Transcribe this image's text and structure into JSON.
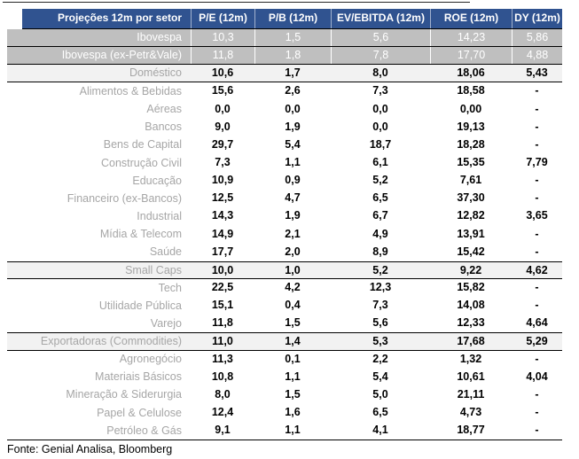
{
  "chart_data": {
    "type": "table",
    "title": "Projeções 12m por setor",
    "columns": [
      "P/E (12m)",
      "P/B (12m)",
      "EV/EBITDA (12m)",
      "ROE (12m)",
      "DY (12m)"
    ],
    "rows": [
      {
        "label": "Ibovespa",
        "style": "dark",
        "values": [
          "10,3",
          "1,5",
          "5,6",
          "14,23",
          "5,86"
        ]
      },
      {
        "label": "Ibovespa (ex-Petr&Vale)",
        "style": "dark",
        "values": [
          "11,8",
          "1,8",
          "7,8",
          "17,70",
          "4,88"
        ]
      },
      {
        "label": "Doméstico",
        "style": "section",
        "values": [
          "10,6",
          "1,7",
          "8,0",
          "18,06",
          "5,43"
        ]
      },
      {
        "label": "Alimentos & Bebidas",
        "style": "normal",
        "values": [
          "15,6",
          "2,6",
          "7,3",
          "18,58",
          "-"
        ]
      },
      {
        "label": "Aéreas",
        "style": "normal",
        "values": [
          "0,0",
          "0,0",
          "0,0",
          "0,00",
          "-"
        ]
      },
      {
        "label": "Bancos",
        "style": "normal",
        "values": [
          "9,0",
          "1,9",
          "0,0",
          "19,13",
          "-"
        ]
      },
      {
        "label": "Bens de Capital",
        "style": "normal",
        "values": [
          "29,7",
          "5,4",
          "18,7",
          "18,28",
          "-"
        ]
      },
      {
        "label": "Construção Civil",
        "style": "normal",
        "values": [
          "7,3",
          "1,1",
          "6,1",
          "15,35",
          "7,79"
        ]
      },
      {
        "label": "Educação",
        "style": "normal",
        "values": [
          "10,9",
          "0,9",
          "5,2",
          "7,61",
          "-"
        ]
      },
      {
        "label": "Financeiro (ex-Bancos)",
        "style": "normal",
        "values": [
          "12,5",
          "4,7",
          "6,5",
          "37,30",
          "-"
        ]
      },
      {
        "label": "Industrial",
        "style": "normal",
        "values": [
          "14,3",
          "1,9",
          "6,7",
          "12,82",
          "3,65"
        ]
      },
      {
        "label": "Mídia & Telecom",
        "style": "normal",
        "values": [
          "14,9",
          "2,1",
          "4,9",
          "13,91",
          "-"
        ]
      },
      {
        "label": "Saúde",
        "style": "normal",
        "values": [
          "17,7",
          "2,0",
          "8,9",
          "15,42",
          "-"
        ]
      },
      {
        "label": "Small Caps",
        "style": "section",
        "values": [
          "10,0",
          "1,0",
          "5,2",
          "9,22",
          "4,62"
        ]
      },
      {
        "label": "Tech",
        "style": "normal",
        "values": [
          "22,5",
          "4,2",
          "12,3",
          "15,82",
          "-"
        ]
      },
      {
        "label": "Utilidade Pública",
        "style": "normal",
        "values": [
          "15,1",
          "0,4",
          "7,3",
          "14,08",
          "-"
        ]
      },
      {
        "label": "Varejo",
        "style": "normal",
        "values": [
          "11,8",
          "1,5",
          "5,6",
          "12,33",
          "4,64"
        ]
      },
      {
        "label": "Exportadoras (Commodities)",
        "style": "section",
        "values": [
          "11,0",
          "1,4",
          "5,3",
          "17,68",
          "5,29"
        ]
      },
      {
        "label": "Agronegócio",
        "style": "normal",
        "values": [
          "11,3",
          "0,1",
          "2,2",
          "1,32",
          "-"
        ]
      },
      {
        "label": "Materiais Básicos",
        "style": "normal",
        "values": [
          "10,8",
          "1,1",
          "5,4",
          "10,61",
          "4,04"
        ]
      },
      {
        "label": "Mineração & Siderurgia",
        "style": "normal",
        "values": [
          "8,0",
          "1,5",
          "5,0",
          "21,11",
          "-"
        ]
      },
      {
        "label": "Papel & Celulose",
        "style": "normal",
        "values": [
          "12,4",
          "1,6",
          "6,5",
          "4,73",
          "-"
        ]
      },
      {
        "label": "Petróleo & Gás",
        "style": "normal",
        "values": [
          "9,1",
          "1,1",
          "4,1",
          "18,77",
          "-"
        ]
      }
    ],
    "footer": "Fonte: Genial Analisa, Bloomberg",
    "layout": {
      "grid": false,
      "legend": "none"
    }
  },
  "colors": {
    "header_bg": "#305390",
    "header_text": "#ffffff",
    "benchmark_row_bg": "#bfbfbf",
    "benchmark_row_text": "#ffffff",
    "section_row_bg": "#f2f2f2",
    "label_text": "#a6a6a6",
    "value_text": "#000000",
    "border": "#000000"
  }
}
